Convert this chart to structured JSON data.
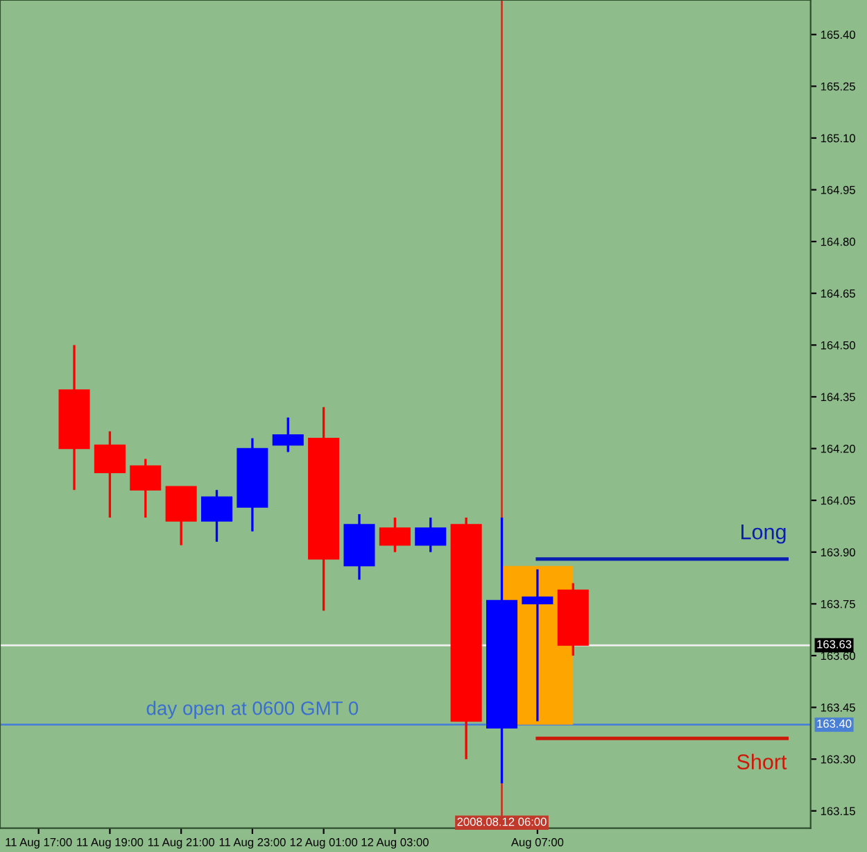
{
  "chart_data": {
    "type": "candlestick",
    "x": [
      "2008-08-11T18:00",
      "2008-08-11T19:00",
      "2008-08-11T20:00",
      "2008-08-11T21:00",
      "2008-08-11T22:00",
      "2008-08-11T23:00",
      "2008-08-12T00:00",
      "2008-08-12T01:00",
      "2008-08-12T02:00",
      "2008-08-12T03:00",
      "2008-08-12T04:00",
      "2008-08-12T05:00",
      "2008-08-12T06:00",
      "2008-08-12T07:00",
      "2008-08-12T08:00"
    ],
    "ohlc": [
      [
        164.37,
        164.5,
        164.08,
        164.2
      ],
      [
        164.21,
        164.25,
        164.0,
        164.13
      ],
      [
        164.15,
        164.17,
        164.0,
        164.08
      ],
      [
        164.09,
        164.09,
        163.92,
        163.99
      ],
      [
        163.99,
        164.08,
        163.93,
        164.06
      ],
      [
        164.03,
        164.23,
        163.96,
        164.2
      ],
      [
        164.21,
        164.29,
        164.19,
        164.24
      ],
      [
        164.23,
        164.32,
        163.73,
        163.88
      ],
      [
        163.86,
        164.01,
        163.82,
        163.98
      ],
      [
        163.97,
        164.0,
        163.9,
        163.92
      ],
      [
        163.92,
        164.0,
        163.9,
        163.97
      ],
      [
        163.98,
        164.0,
        163.3,
        163.41
      ],
      [
        163.39,
        164.0,
        163.23,
        163.76
      ],
      [
        163.75,
        163.85,
        163.41,
        163.77
      ],
      [
        163.79,
        163.81,
        163.6,
        163.63
      ]
    ],
    "colors": [
      "#ff0000",
      "#ff0000",
      "#ff0000",
      "#ff0000",
      "#0000ff",
      "#0000ff",
      "#0000ff",
      "#ff0000",
      "#0000ff",
      "#ff0000",
      "#0000ff",
      "#ff0000",
      "#0000ff",
      "#0000ff",
      "#ff0000"
    ],
    "series": [
      {
        "type": "bar",
        "color": "#ffa500",
        "x": [
          "2008-08-12T07:00"
        ],
        "values": [
          0.46
        ],
        "base": [
          163.4
        ]
      },
      {
        "type": "line",
        "name": "Long",
        "color": "#0a1fb0",
        "x": [
          "2008-08-12T07:00",
          "2008-08-12T14:00"
        ],
        "values": [
          163.88,
          163.88
        ]
      },
      {
        "type": "line",
        "name": "Short",
        "color": "#cc1a0a",
        "x": [
          "2008-08-12T07:00",
          "2008-08-12T14:00"
        ],
        "values": [
          163.36,
          163.36
        ]
      }
    ],
    "xlim": [
      "2008-08-11T15:55",
      "2008-08-12T14:40"
    ],
    "xticks": [
      {
        "value": "2008-08-11T17:00",
        "label": "11 Aug 17:00"
      },
      {
        "value": "2008-08-11T19:00",
        "label": "11 Aug 19:00"
      },
      {
        "value": "2008-08-11T21:00",
        "label": "11 Aug 21:00"
      },
      {
        "value": "2008-08-11T23:00",
        "label": "11 Aug 23:00"
      },
      {
        "value": "2008-08-12T01:00",
        "label": "12 Aug 01:00"
      },
      {
        "value": "2008-08-12T03:00",
        "label": "12 Aug 03:00"
      },
      {
        "value": "2008-08-12T07:00",
        "label": "Aug 07:00"
      }
    ],
    "ylim": [
      163.1,
      165.5
    ],
    "yticks": [
      163.15,
      {
        "value": 163.3,
        "label": "163.30"
      },
      163.45,
      {
        "value": 163.6,
        "label": "163.60"
      },
      163.75,
      {
        "value": 163.9,
        "label": "163.90"
      },
      164.05,
      {
        "value": 164.2,
        "label": "164.20"
      },
      164.35,
      {
        "value": 164.5,
        "label": "164.50"
      },
      164.65,
      {
        "value": 164.8,
        "label": "164.80"
      },
      164.95,
      {
        "value": 165.1,
        "label": "165.10"
      },
      165.25,
      {
        "value": 165.4,
        "label": "165.40"
      }
    ],
    "ref_lines": [
      {
        "axis": "x",
        "value": "2008-08-12T06:00",
        "label": "2008.08.12 06:00",
        "color": "#c0392b"
      },
      {
        "axis": "y",
        "value": 163.63,
        "label": "163.63",
        "color": "#f0f0f0"
      },
      {
        "axis": "y",
        "value": 163.4,
        "label": "163.40",
        "color": "#4a7fd6"
      }
    ],
    "annotations": [
      {
        "text": "day open at 0600 GMT 0",
        "x": "2008-08-11T23:00",
        "y": 163.4
      }
    ],
    "grid": false,
    "legend": false
  }
}
